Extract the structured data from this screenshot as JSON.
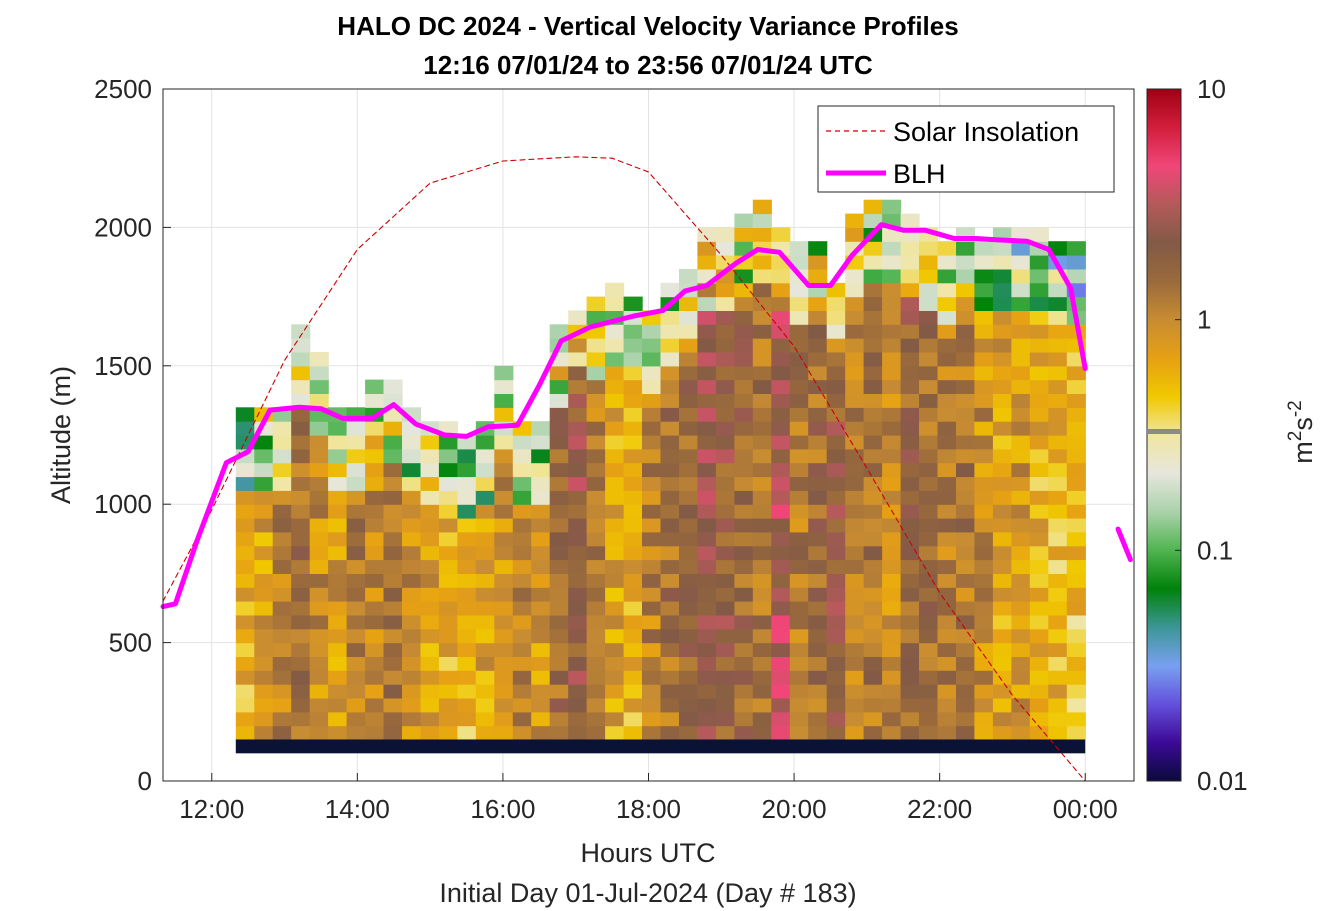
{
  "chart_data": {
    "type": "heatmap",
    "title": "HALO DC 2024 - Vertical Velocity Variance Profiles",
    "subtitle": "12:16 07/01/24 to 23:56 07/01/24  UTC",
    "xlabel": "Hours UTC",
    "xlabel2": "Initial Day 01-Jul-2024 (Day # 183)",
    "ylabel": "Altitude (m)",
    "xlim": [
      11.33,
      24.67
    ],
    "ylim": [
      0,
      2500
    ],
    "x_ticks": [
      12,
      14,
      16,
      18,
      20,
      22,
      24
    ],
    "x_tick_labels": [
      "12:00",
      "14:00",
      "16:00",
      "18:00",
      "20:00",
      "22:00",
      "00:00"
    ],
    "y_ticks": [
      0,
      500,
      1000,
      1500,
      2000,
      2500
    ],
    "y_tick_labels": [
      "0",
      "500",
      "1000",
      "1500",
      "2000",
      "2500"
    ],
    "grid": true,
    "colorbar": {
      "label_base": "m",
      "label_sup1": "2",
      "label_mid": "s",
      "label_sup2": "-2",
      "scale": "log",
      "range": [
        0.01,
        10
      ],
      "ticks": [
        0.01,
        0.1,
        1,
        10
      ],
      "tick_labels": [
        "0.01",
        "0.1",
        "1",
        "10"
      ],
      "colors": [
        "#0a0a3c",
        "#3c0a96",
        "#6450dc",
        "#78a0f0",
        "#3c9696",
        "#00820a",
        "#50b450",
        "#aad2aa",
        "#e6e6dc",
        "#f0e6a0",
        "#f0c800",
        "#e6a014",
        "#c88c32",
        "#9a6a3c",
        "#825a46",
        "#b45a5a",
        "#f04678",
        "#d21e3c",
        "#a00014"
      ]
    },
    "grid_time_step_h": 0.333,
    "grid_alt_step_m": 50,
    "heatmap_time_start_h": 12.33,
    "heatmap_time_end_h": 24.0,
    "heatmap_alt_bottom_m": 100,
    "heatmap_tops_m": [
      1350,
      1350,
      1350,
      1650,
      1550,
      1350,
      1350,
      1450,
      1450,
      1350,
      1300,
      1300,
      1250,
      1300,
      1500,
      1300,
      1300,
      1650,
      1700,
      1750,
      1800,
      1750,
      1700,
      1800,
      1850,
      2000,
      2000,
      2050,
      2100,
      2000,
      1950,
      1950,
      1800,
      2050,
      2100,
      2100,
      2050,
      2000,
      1950,
      2000,
      1950,
      2000,
      2000,
      2000,
      1950,
      1950
    ],
    "near_ground_band": {
      "alt_m": [
        100,
        150
      ],
      "color": "#0a1236"
    },
    "heatmap_profile_means": [
      0.55,
      0.7,
      1.1,
      1.4,
      0.9,
      0.8,
      1.2,
      1.0,
      1.3,
      0.9,
      0.75,
      0.6,
      0.55,
      0.7,
      0.9,
      1.0,
      0.85,
      1.5,
      2.2,
      1.2,
      0.7,
      0.6,
      1.1,
      1.4,
      1.5,
      2.5,
      2.0,
      1.6,
      1.4,
      2.8,
      1.2,
      1.5,
      2.0,
      1.1,
      1.3,
      1.0,
      1.8,
      1.4,
      1.2,
      1.3,
      0.9,
      0.7,
      0.8,
      0.6,
      0.55,
      0.5
    ],
    "series": [
      {
        "name": "Solar Insolation",
        "style": "dashed",
        "color": "#cc0000",
        "x": [
          11.33,
          12.0,
          13.0,
          14.0,
          15.0,
          16.0,
          17.0,
          17.5,
          18.0,
          19.0,
          20.0,
          21.0,
          22.0,
          23.0,
          24.0,
          24.5
        ],
        "y": [
          650,
          980,
          1520,
          1920,
          2160,
          2240,
          2255,
          2250,
          2200,
          1900,
          1570,
          1130,
          680,
          310,
          0,
          0
        ]
      },
      {
        "name": "BLH",
        "style": "solid",
        "color": "#ff00ff",
        "x": [
          11.33,
          11.5,
          11.8,
          12.2,
          12.5,
          12.8,
          13.2,
          13.5,
          13.8,
          14.2,
          14.5,
          14.8,
          15.2,
          15.5,
          15.8,
          16.2,
          16.5,
          16.8,
          17.2,
          17.5,
          17.8,
          18.2,
          18.5,
          18.8,
          19.2,
          19.5,
          19.8,
          20.2,
          20.5,
          20.8,
          21.2,
          21.5,
          21.8,
          22.2,
          22.5,
          22.8,
          23.2,
          23.5,
          23.8,
          24.0,
          24.25
        ],
        "y": [
          630,
          640,
          870,
          1150,
          1190,
          1340,
          1350,
          1345,
          1310,
          1310,
          1360,
          1290,
          1250,
          1245,
          1280,
          1285,
          1430,
          1590,
          1640,
          1660,
          1680,
          1700,
          1770,
          1790,
          1870,
          1920,
          1910,
          1790,
          1790,
          1900,
          2010,
          1990,
          1990,
          1960,
          1960,
          1955,
          1950,
          1920,
          1780,
          1490,
          null
        ]
      },
      {
        "name": "BLH-segment-2",
        "style": "solid",
        "color": "#ff00ff",
        "x": [
          24.45,
          24.62
        ],
        "y": [
          910,
          800
        ]
      }
    ],
    "legend": {
      "placement": "top-right",
      "entries": [
        "Solar Insolation",
        "BLH"
      ]
    }
  }
}
